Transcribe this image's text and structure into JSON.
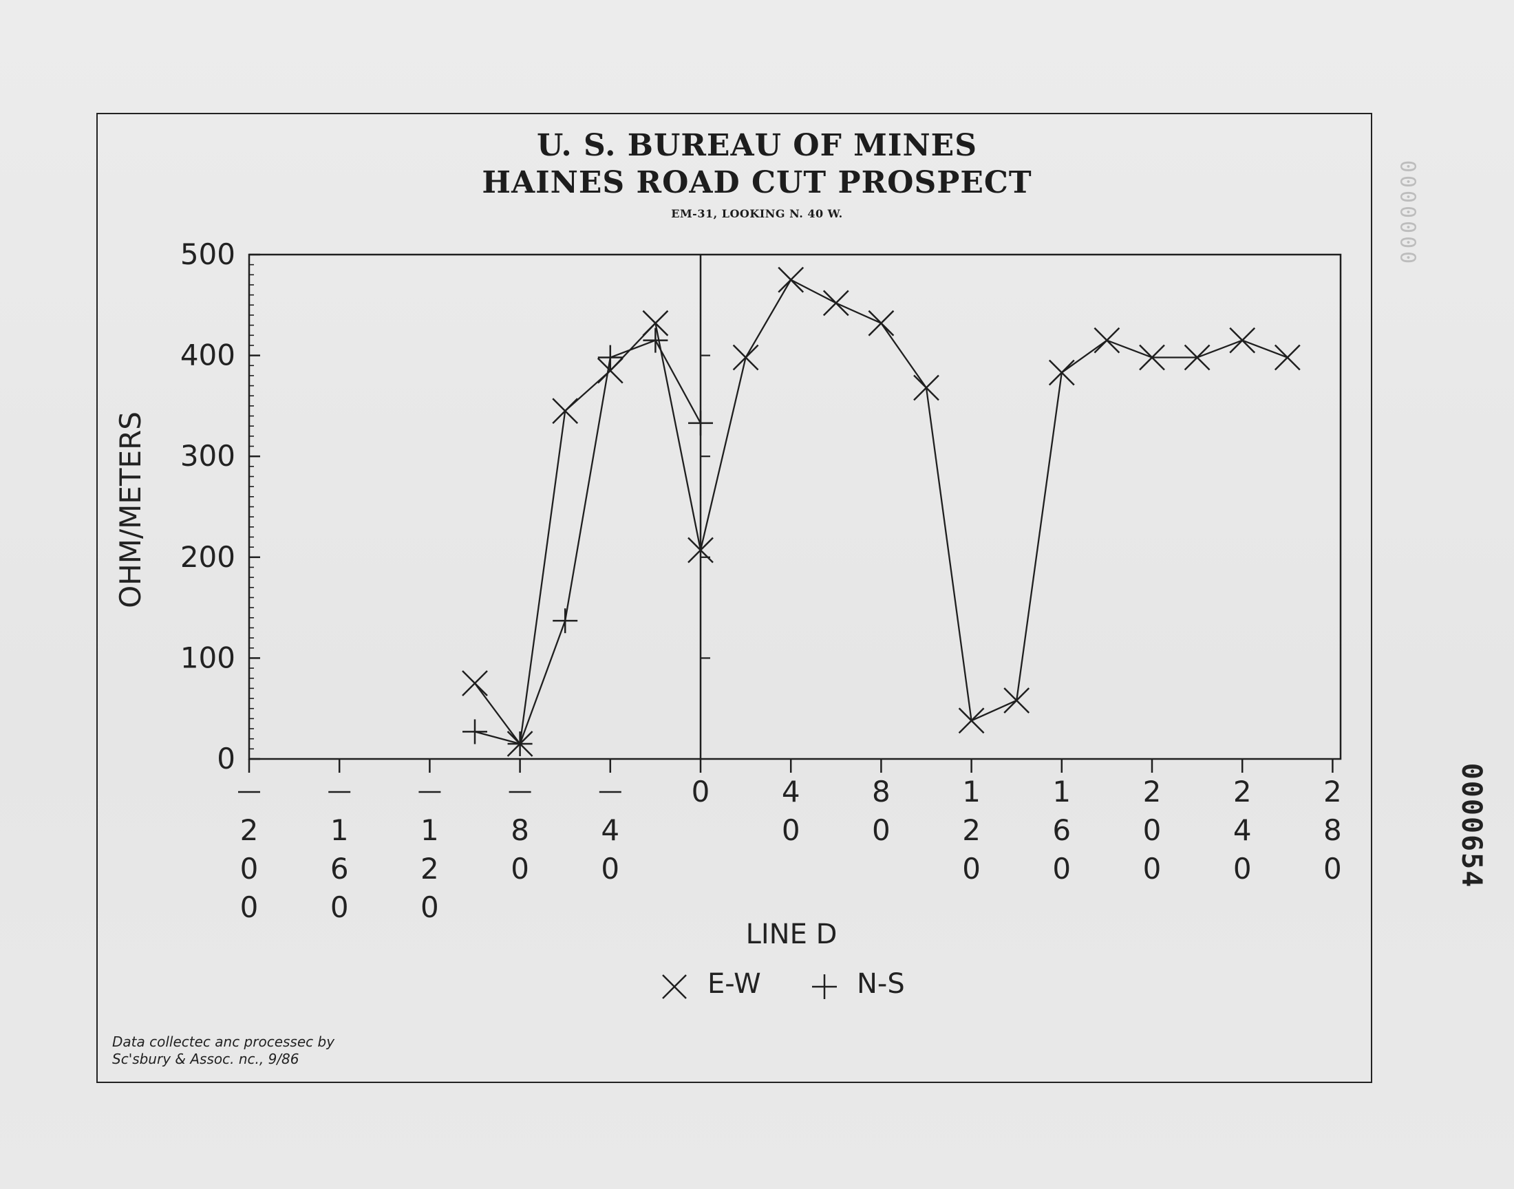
{
  "chart_data": {
    "type": "line",
    "title": "U. S. BUREAU OF MINES",
    "subtitle": "HAINES ROAD CUT PROSPECT",
    "caption": "EM-31, LOOKING N. 40 W.",
    "xlabel": "LINE D",
    "ylabel": "OHM/METERS",
    "xlim": [
      -200,
      280
    ],
    "ylim": [
      0,
      500
    ],
    "y_ticks": [
      "0",
      "100",
      "200",
      "300",
      "400",
      "500"
    ],
    "x_ticks": [
      {
        "value": -200,
        "label": "-200"
      },
      {
        "value": -160,
        "label": "-160"
      },
      {
        "value": -120,
        "label": "-120"
      },
      {
        "value": -80,
        "label": "-80"
      },
      {
        "value": -40,
        "label": "-40"
      },
      {
        "value": 0,
        "label": "0"
      },
      {
        "value": 40,
        "label": "40"
      },
      {
        "value": 80,
        "label": "80"
      },
      {
        "value": 120,
        "label": "120"
      },
      {
        "value": 160,
        "label": "160"
      },
      {
        "value": 200,
        "label": "200"
      },
      {
        "value": 240,
        "label": "240"
      },
      {
        "value": 280,
        "label": "280"
      }
    ],
    "grid": false,
    "legend_position": "bottom-center",
    "series": [
      {
        "name": "E-W",
        "marker": "x",
        "points": [
          [
            -100,
            75
          ],
          [
            -80,
            15
          ],
          [
            -60,
            345
          ],
          [
            -40,
            385
          ],
          [
            -20,
            432
          ],
          [
            0,
            207
          ],
          [
            20,
            398
          ],
          [
            40,
            475
          ],
          [
            60,
            452
          ],
          [
            80,
            432
          ],
          [
            100,
            368
          ],
          [
            120,
            38
          ],
          [
            140,
            58
          ],
          [
            160,
            383
          ],
          [
            180,
            415
          ],
          [
            200,
            398
          ],
          [
            220,
            398
          ],
          [
            240,
            415
          ],
          [
            260,
            398
          ]
        ]
      },
      {
        "name": "N-S",
        "marker": "+",
        "points": [
          [
            -100,
            27
          ],
          [
            -80,
            15
          ],
          [
            -60,
            137
          ],
          [
            -40,
            398
          ],
          [
            -20,
            415
          ],
          [
            0,
            333
          ]
        ]
      }
    ],
    "vertical_reference_line": {
      "x": 0,
      "tick_marks": [
        100,
        200,
        300,
        400
      ]
    }
  },
  "legend": {
    "ew_label": "E-W",
    "ns_label": "N-S"
  },
  "credit": {
    "line1": "Data collectec anc processec by",
    "line2": "Sc'sbury & Assoc. nc., 9/86"
  },
  "stamps": {
    "right": "0000654",
    "faint": "0000000"
  }
}
